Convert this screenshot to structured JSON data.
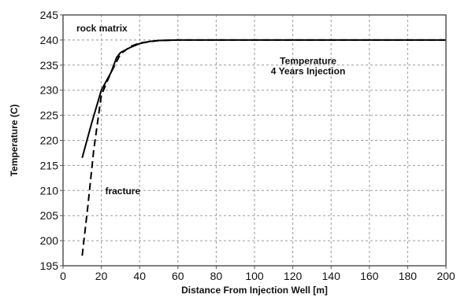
{
  "chart_data": {
    "type": "line",
    "xlabel": "Distance From Injection Well [m]",
    "ylabel": "Temperature (C)",
    "xlim": [
      0,
      200
    ],
    "ylim": [
      195,
      245
    ],
    "x_ticks": [
      0,
      20,
      40,
      60,
      80,
      100,
      120,
      140,
      160,
      180,
      200
    ],
    "y_ticks": [
      195,
      200,
      205,
      210,
      215,
      220,
      225,
      230,
      235,
      240,
      245
    ],
    "x_tick_labels": [
      "0",
      "20",
      "40",
      "60",
      "80",
      "100",
      "120",
      "140",
      "160",
      "180",
      "200"
    ],
    "y_tick_labels": [
      "195",
      "200",
      "205",
      "210",
      "215",
      "220",
      "225",
      "230",
      "235",
      "240",
      "245"
    ],
    "grid": true,
    "series": [
      {
        "name": "rock matrix",
        "style": "solid",
        "color": "#000000",
        "x": [
          10,
          15,
          20,
          25,
          28,
          30,
          35,
          40,
          45,
          50,
          60,
          80,
          100,
          150,
          200
        ],
        "y": [
          216.5,
          223.5,
          230,
          233.5,
          236.5,
          237.5,
          238.5,
          239.3,
          239.7,
          239.9,
          240,
          240,
          240,
          240,
          240
        ]
      },
      {
        "name": "fracture",
        "style": "dashed",
        "color": "#000000",
        "x": [
          10,
          13,
          16,
          20,
          25,
          30,
          35,
          40,
          50,
          60,
          100,
          200
        ],
        "y": [
          197,
          207,
          218,
          229,
          233.5,
          237.2,
          238.7,
          239.4,
          239.9,
          240,
          240,
          240
        ]
      }
    ],
    "annotations": [
      {
        "id": "rock",
        "text": "rock matrix",
        "x": 7,
        "y": 241.7,
        "anchor": "start"
      },
      {
        "id": "frac",
        "text": "fracture",
        "x": 22,
        "y": 209.3,
        "anchor": "start"
      },
      {
        "id": "temp1",
        "text": "Temperature",
        "x": 128,
        "y": 235.2,
        "anchor": "middle"
      },
      {
        "id": "temp2",
        "text": "4 Years Injection",
        "x": 128,
        "y": 233.2,
        "anchor": "middle"
      }
    ]
  }
}
